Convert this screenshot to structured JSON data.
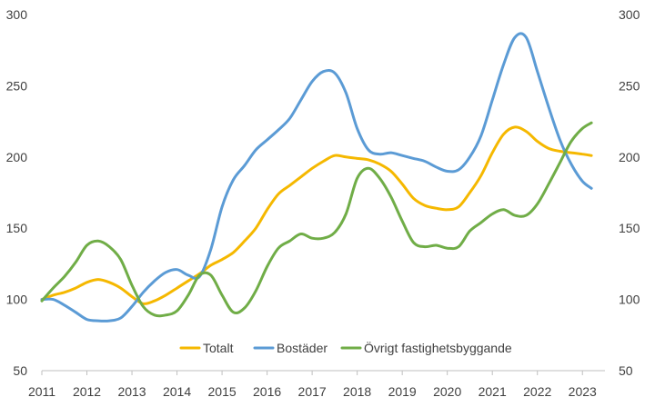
{
  "chart_data": {
    "type": "line",
    "title": "",
    "xlabel": "",
    "ylabel": "",
    "ylim": [
      50,
      300
    ],
    "y_ticks": [
      50,
      100,
      150,
      200,
      250,
      300
    ],
    "x_range": [
      2011,
      2023.5
    ],
    "x_ticks": [
      2011,
      2012,
      2013,
      2014,
      2015,
      2016,
      2017,
      2018,
      2019,
      2020,
      2021,
      2022,
      2023
    ],
    "y_axis_labels_both_sides": true,
    "grid": false,
    "legend_position": "bottom-center inside plot",
    "series": [
      {
        "name": "Totalt",
        "color": "#f5b800",
        "points": [
          [
            2011.0,
            100
          ],
          [
            2011.25,
            103
          ],
          [
            2011.5,
            105
          ],
          [
            2011.75,
            108
          ],
          [
            2012.0,
            112
          ],
          [
            2012.25,
            114
          ],
          [
            2012.5,
            112
          ],
          [
            2012.75,
            108
          ],
          [
            2013.0,
            102
          ],
          [
            2013.25,
            97
          ],
          [
            2013.5,
            99
          ],
          [
            2013.75,
            103
          ],
          [
            2014.0,
            108
          ],
          [
            2014.25,
            113
          ],
          [
            2014.5,
            118
          ],
          [
            2014.75,
            124
          ],
          [
            2015.0,
            128
          ],
          [
            2015.25,
            133
          ],
          [
            2015.5,
            141
          ],
          [
            2015.75,
            150
          ],
          [
            2016.0,
            163
          ],
          [
            2016.25,
            174
          ],
          [
            2016.5,
            180
          ],
          [
            2016.75,
            186
          ],
          [
            2017.0,
            192
          ],
          [
            2017.25,
            197
          ],
          [
            2017.5,
            201
          ],
          [
            2017.75,
            200
          ],
          [
            2018.0,
            199
          ],
          [
            2018.25,
            198
          ],
          [
            2018.5,
            195
          ],
          [
            2018.75,
            190
          ],
          [
            2019.0,
            181
          ],
          [
            2019.25,
            171
          ],
          [
            2019.5,
            166
          ],
          [
            2019.75,
            164
          ],
          [
            2020.0,
            163
          ],
          [
            2020.25,
            165
          ],
          [
            2020.5,
            175
          ],
          [
            2020.75,
            187
          ],
          [
            2021.0,
            203
          ],
          [
            2021.25,
            216
          ],
          [
            2021.5,
            221
          ],
          [
            2021.75,
            218
          ],
          [
            2022.0,
            211
          ],
          [
            2022.25,
            206
          ],
          [
            2022.5,
            204
          ],
          [
            2022.75,
            203
          ],
          [
            2023.0,
            202
          ],
          [
            2023.2,
            201
          ]
        ]
      },
      {
        "name": "Bostäder",
        "color": "#5b9bd5",
        "points": [
          [
            2011.0,
            100
          ],
          [
            2011.25,
            100
          ],
          [
            2011.5,
            96
          ],
          [
            2011.75,
            91
          ],
          [
            2012.0,
            86
          ],
          [
            2012.25,
            85
          ],
          [
            2012.5,
            85
          ],
          [
            2012.75,
            87
          ],
          [
            2013.0,
            95
          ],
          [
            2013.25,
            105
          ],
          [
            2013.5,
            113
          ],
          [
            2013.75,
            119
          ],
          [
            2014.0,
            121
          ],
          [
            2014.25,
            117
          ],
          [
            2014.5,
            116
          ],
          [
            2014.75,
            135
          ],
          [
            2015.0,
            165
          ],
          [
            2015.25,
            184
          ],
          [
            2015.5,
            194
          ],
          [
            2015.75,
            205
          ],
          [
            2016.0,
            212
          ],
          [
            2016.25,
            219
          ],
          [
            2016.5,
            227
          ],
          [
            2016.75,
            240
          ],
          [
            2017.0,
            253
          ],
          [
            2017.25,
            260
          ],
          [
            2017.5,
            259
          ],
          [
            2017.75,
            245
          ],
          [
            2018.0,
            220
          ],
          [
            2018.25,
            205
          ],
          [
            2018.5,
            202
          ],
          [
            2018.75,
            203
          ],
          [
            2019.0,
            201
          ],
          [
            2019.25,
            199
          ],
          [
            2019.5,
            197
          ],
          [
            2019.75,
            193
          ],
          [
            2020.0,
            190
          ],
          [
            2020.25,
            191
          ],
          [
            2020.5,
            200
          ],
          [
            2020.75,
            215
          ],
          [
            2021.0,
            240
          ],
          [
            2021.25,
            265
          ],
          [
            2021.5,
            284
          ],
          [
            2021.75,
            284
          ],
          [
            2022.0,
            260
          ],
          [
            2022.25,
            235
          ],
          [
            2022.5,
            212
          ],
          [
            2022.75,
            195
          ],
          [
            2023.0,
            183
          ],
          [
            2023.2,
            178
          ]
        ]
      },
      {
        "name": "Övrigt fastighetsbyggande",
        "color": "#70ad47",
        "points": [
          [
            2011.0,
            99
          ],
          [
            2011.25,
            108
          ],
          [
            2011.5,
            116
          ],
          [
            2011.75,
            126
          ],
          [
            2012.0,
            138
          ],
          [
            2012.25,
            141
          ],
          [
            2012.5,
            137
          ],
          [
            2012.75,
            128
          ],
          [
            2013.0,
            110
          ],
          [
            2013.25,
            95
          ],
          [
            2013.5,
            89
          ],
          [
            2013.75,
            89
          ],
          [
            2014.0,
            92
          ],
          [
            2014.25,
            103
          ],
          [
            2014.5,
            117
          ],
          [
            2014.75,
            117
          ],
          [
            2015.0,
            103
          ],
          [
            2015.25,
            91
          ],
          [
            2015.5,
            94
          ],
          [
            2015.75,
            106
          ],
          [
            2016.0,
            123
          ],
          [
            2016.25,
            136
          ],
          [
            2016.5,
            141
          ],
          [
            2016.75,
            146
          ],
          [
            2017.0,
            143
          ],
          [
            2017.25,
            143
          ],
          [
            2017.5,
            147
          ],
          [
            2017.75,
            160
          ],
          [
            2018.0,
            185
          ],
          [
            2018.25,
            192
          ],
          [
            2018.5,
            185
          ],
          [
            2018.75,
            172
          ],
          [
            2019.0,
            155
          ],
          [
            2019.25,
            140
          ],
          [
            2019.5,
            137
          ],
          [
            2019.75,
            138
          ],
          [
            2020.0,
            136
          ],
          [
            2020.25,
            137
          ],
          [
            2020.5,
            148
          ],
          [
            2020.75,
            154
          ],
          [
            2021.0,
            160
          ],
          [
            2021.25,
            163
          ],
          [
            2021.5,
            159
          ],
          [
            2021.75,
            159
          ],
          [
            2022.0,
            167
          ],
          [
            2022.25,
            181
          ],
          [
            2022.5,
            196
          ],
          [
            2022.75,
            211
          ],
          [
            2023.0,
            220
          ],
          [
            2023.2,
            224
          ]
        ]
      }
    ]
  }
}
